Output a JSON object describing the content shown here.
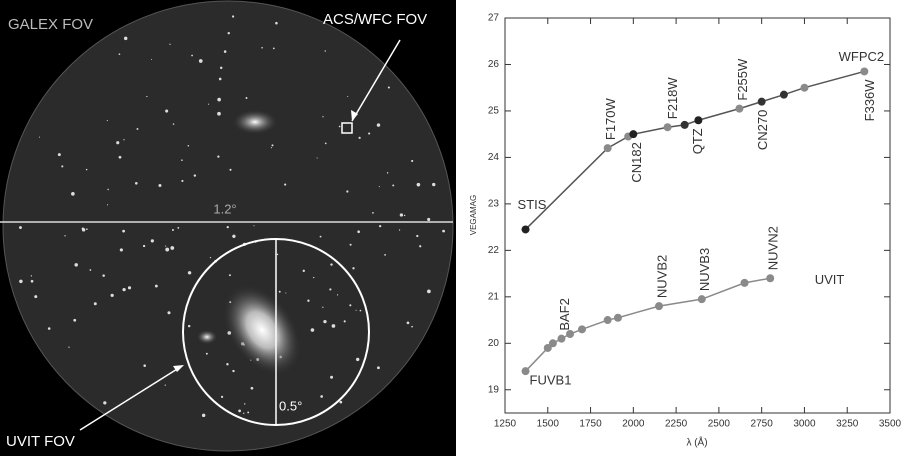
{
  "image": {
    "labels": {
      "galex_fov": "GALEX FOV",
      "acs_fov": "ACS/WFC FOV",
      "wide_angle": "1.2°",
      "uvit_angle": "0.5°",
      "uvit_fov": "UVIT FOV"
    }
  },
  "chart_data": {
    "type": "line",
    "xlabel": "λ (Å)",
    "ylabel": "VEGAMAG",
    "xlim": [
      1250,
      3500
    ],
    "xticks": [
      1250,
      1500,
      1750,
      2000,
      2250,
      2500,
      2750,
      3000,
      3250,
      3500
    ],
    "ylim": [
      18.5,
      27
    ],
    "yticks": [
      19,
      20,
      21,
      22,
      23,
      24,
      25,
      26,
      27
    ],
    "grid": false,
    "series": [
      {
        "name": "WFPC2",
        "color": "#555555",
        "x": [
          1370,
          1850,
          1970,
          2000,
          2200,
          2300,
          2380,
          2620,
          2750,
          2880,
          3000,
          3350
        ],
        "values": [
          22.45,
          24.2,
          24.45,
          24.5,
          24.65,
          24.7,
          24.8,
          25.05,
          25.2,
          25.35,
          25.5,
          25.85
        ],
        "point_colors": [
          "#222222",
          "#8a8a8a",
          "#8a8a8a",
          "#222222",
          "#8a8a8a",
          "#333333",
          "#222222",
          "#8a8a8a",
          "#333333",
          "#333333",
          "#8a8a8a",
          "#8a8a8a"
        ],
        "point_labels": [
          "STIS",
          "F170W",
          null,
          "CN182",
          "F218W",
          null,
          "QTZ",
          "F255W",
          "CN270",
          null,
          null,
          "F336W"
        ]
      },
      {
        "name": "UVIT",
        "color": "#8a8a8a",
        "x": [
          1370,
          1500,
          1530,
          1580,
          1630,
          1700,
          1850,
          1910,
          2150,
          2400,
          2650,
          2800
        ],
        "values": [
          19.4,
          19.9,
          20.0,
          20.1,
          20.2,
          20.3,
          20.5,
          20.55,
          20.8,
          20.95,
          21.3,
          21.4
        ],
        "point_colors": [
          "#8a8a8a",
          "#8a8a8a",
          "#8a8a8a",
          "#8a8a8a",
          "#8a8a8a",
          "#8a8a8a",
          "#8a8a8a",
          "#8a8a8a",
          "#8a8a8a",
          "#8a8a8a",
          "#8a8a8a",
          "#8a8a8a"
        ],
        "point_labels": [
          "FUVB1",
          null,
          null,
          "BAF2",
          null,
          null,
          null,
          null,
          "NUVB2",
          "NUVB3",
          null,
          "NUVN2"
        ]
      }
    ]
  }
}
